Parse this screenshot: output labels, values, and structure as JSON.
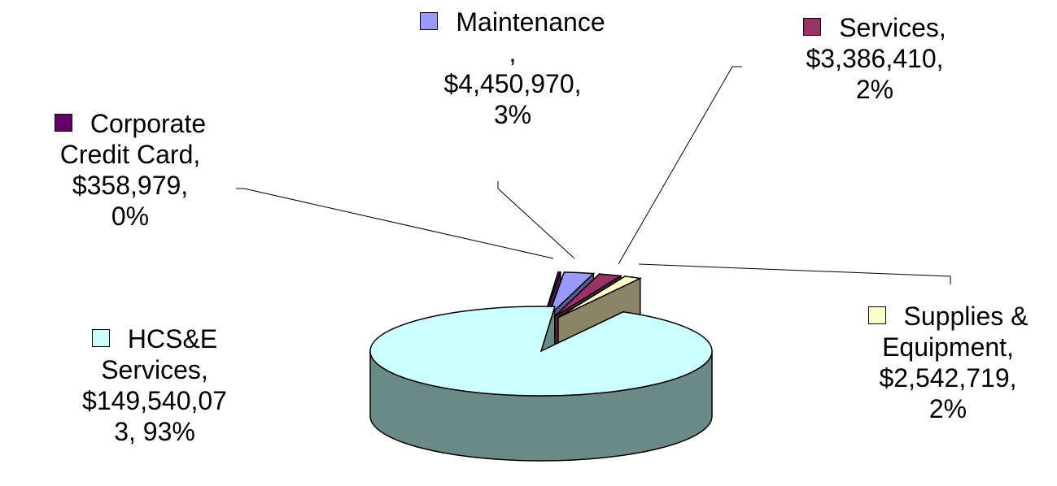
{
  "chart_data": {
    "type": "pie",
    "style": "3d-exploded",
    "legend_placement": "labels around pie",
    "slices": [
      {
        "key": "hcse",
        "category": "HCS&E Services",
        "value": 149540073,
        "percent": 93,
        "color": "#ccffff",
        "side_color": "#6b8a86",
        "label_lines": [
          "HCS&E",
          "Services,",
          "$149,540,07",
          "3, 93%"
        ]
      },
      {
        "key": "corporate",
        "category": "Corporate Credit Card",
        "value": 358979,
        "percent": 0,
        "color": "#660066",
        "side_color": "#4a1a4a",
        "label_lines": [
          "Corporate",
          "Credit Card,",
          "$358,979,",
          "0%"
        ]
      },
      {
        "key": "maintenance",
        "category": "Maintenance",
        "value": 4450970,
        "percent": 3,
        "color": "#9999ff",
        "side_color": "#5a5a96",
        "label_lines": [
          "Maintenance",
          ",",
          "$4,450,970,",
          "3%"
        ]
      },
      {
        "key": "services",
        "category": "Services",
        "value": 3386410,
        "percent": 2,
        "color": "#993366",
        "side_color": "#5e2140",
        "label_lines": [
          "Services,",
          "$3,386,410,",
          "2%"
        ]
      },
      {
        "key": "supplies",
        "category": "Supplies & Equipment",
        "value": 2542719,
        "percent": 2,
        "color": "#ffffcc",
        "side_color": "#8a8566",
        "label_lines": [
          "Supplies &",
          "Equipment,",
          "$2,542,719,",
          "2%"
        ]
      }
    ]
  }
}
